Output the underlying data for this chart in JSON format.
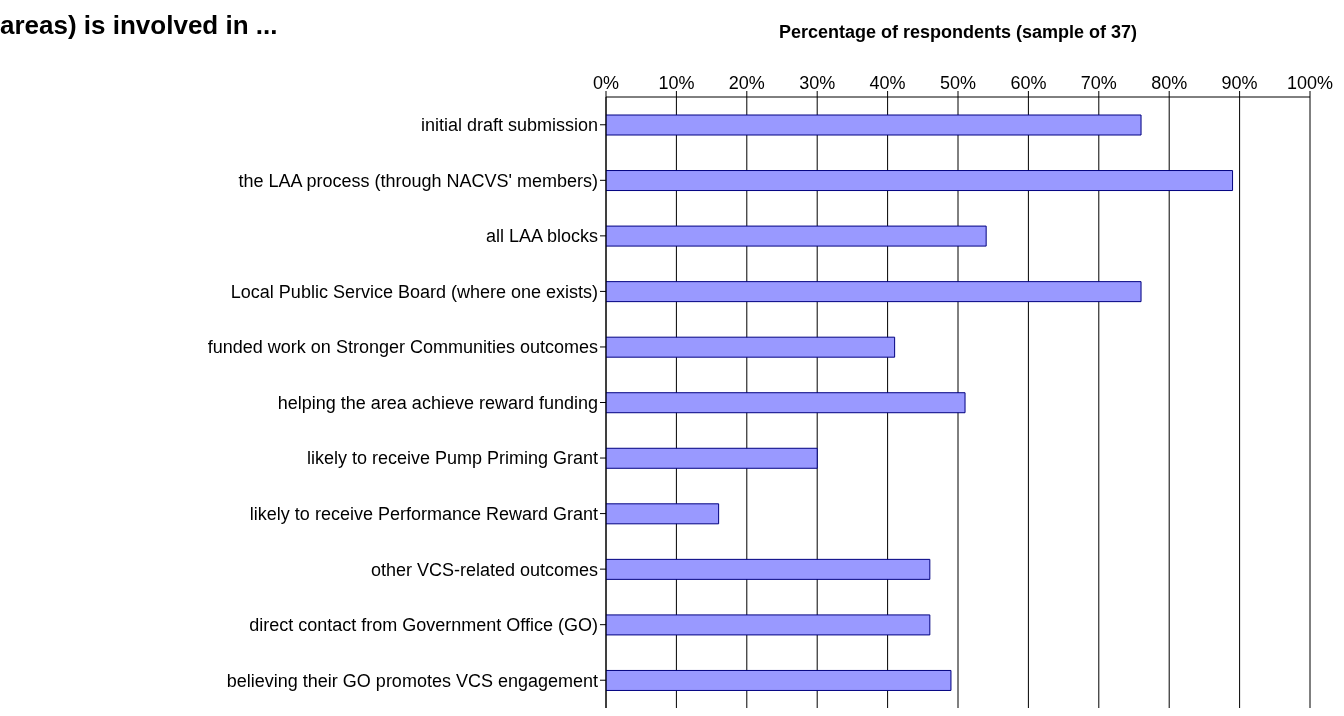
{
  "chart_data": {
    "type": "bar",
    "orientation": "horizontal",
    "title": "areas) is involved in ...",
    "xlabel": "Percentage of respondents (sample of 37)",
    "categories": [
      "initial draft submission",
      "the LAA process (through NACVS' members)",
      "all LAA blocks",
      "Local Public Service Board (where one exists)",
      "funded work on Stronger Communities outcomes",
      "helping the area achieve reward funding",
      "likely to receive Pump Priming Grant",
      "likely to receive Performance Reward Grant",
      "other VCS-related outcomes",
      "direct contact from Government Office (GO)",
      "believing their GO promotes VCS engagement"
    ],
    "values": [
      76,
      89,
      54,
      76,
      41,
      51,
      30,
      16,
      46,
      46,
      49
    ],
    "color": "#9999ff",
    "xlim": [
      0,
      100
    ],
    "xticks": [
      {
        "value": 0,
        "label": "0%"
      },
      {
        "value": 10,
        "label": "10%"
      },
      {
        "value": 20,
        "label": "20%"
      },
      {
        "value": 30,
        "label": "30%"
      },
      {
        "value": 40,
        "label": "40%"
      },
      {
        "value": 50,
        "label": "50%"
      },
      {
        "value": 60,
        "label": "60%"
      },
      {
        "value": 70,
        "label": "70%"
      },
      {
        "value": 80,
        "label": "80%"
      },
      {
        "value": 90,
        "label": "90%"
      },
      {
        "value": 100,
        "label": "100%"
      }
    ],
    "grid": "x"
  }
}
